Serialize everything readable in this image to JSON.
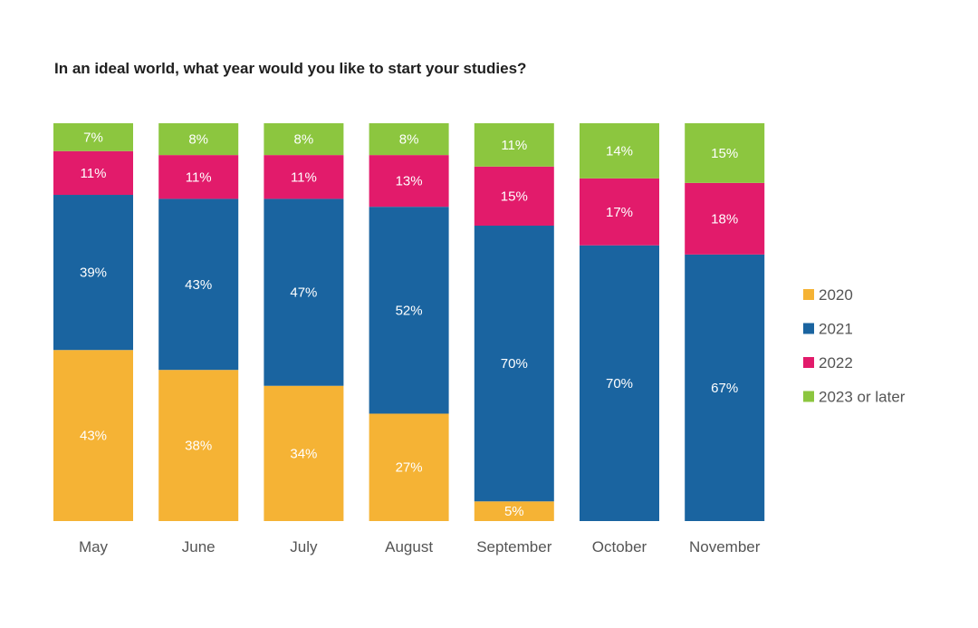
{
  "title": "In an ideal world, what year would you like to start your studies?",
  "colors": {
    "2020": "#f5b335",
    "2021": "#1a64a0",
    "2022": "#e21b6b",
    "2023 or later": "#8cc63f"
  },
  "chart_data": {
    "type": "bar",
    "stacked": true,
    "percent": true,
    "title": "In an ideal world, what year would you like to start your studies?",
    "categories": [
      "May",
      "June",
      "July",
      "August",
      "September",
      "October",
      "November"
    ],
    "series": [
      {
        "name": "2020",
        "values": [
          43,
          38,
          34,
          27,
          5,
          0,
          0
        ],
        "labels": [
          "43%",
          "38%",
          "34%",
          "27%",
          "5%",
          "",
          ""
        ]
      },
      {
        "name": "2021",
        "values": [
          39,
          43,
          47,
          52,
          70,
          70,
          67
        ],
        "labels": [
          "39%",
          "43%",
          "47%",
          "52%",
          "70%",
          "70%",
          "67%"
        ]
      },
      {
        "name": "2022",
        "values": [
          11,
          11,
          11,
          13,
          15,
          17,
          18
        ],
        "labels": [
          "11%",
          "11%",
          "11%",
          "13%",
          "15%",
          "17%",
          "18%"
        ]
      },
      {
        "name": "2023 or later",
        "values": [
          7,
          8,
          8,
          8,
          11,
          14,
          15
        ],
        "labels": [
          "7%",
          "8%",
          "8%",
          "8%",
          "11%",
          "14%",
          "15%"
        ]
      }
    ],
    "legend": {
      "position": "right",
      "entries": [
        "2020",
        "2021",
        "2022",
        "2023 or later"
      ]
    },
    "grid": false
  }
}
